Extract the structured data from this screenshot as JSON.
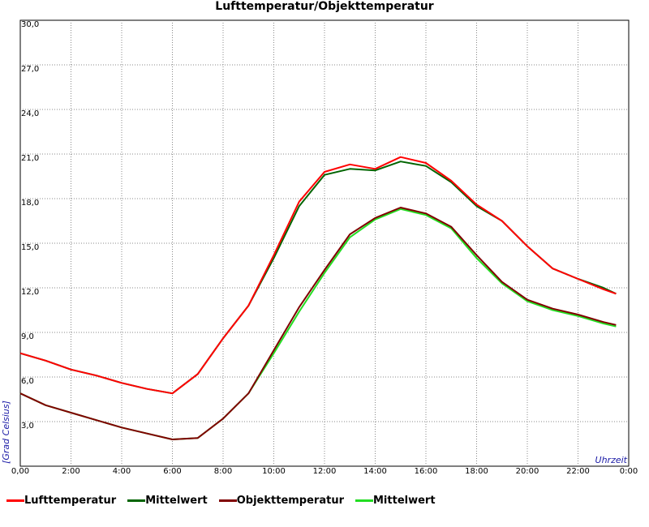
{
  "chart_data": {
    "type": "line",
    "title": "Lufttemperatur/Objekttemperatur",
    "xlabel": "Uhrzeit",
    "ylabel": "[Grad Celsius]",
    "xlim": [
      0,
      24
    ],
    "ylim": [
      0,
      30
    ],
    "x_ticks": [
      "0,00",
      "2:00",
      "4:00",
      "6:00",
      "8:00",
      "10:00",
      "12:00",
      "14:00",
      "16:00",
      "18:00",
      "20:00",
      "22:00",
      "0:00"
    ],
    "y_ticks": [
      "3,0",
      "6,0",
      "9,0",
      "12,0",
      "15,0",
      "18,0",
      "21,0",
      "24,0",
      "27,0",
      "30,0"
    ],
    "grid": true,
    "legend_position": "bottom",
    "x": [
      0,
      1,
      2,
      3,
      4,
      5,
      6,
      7,
      8,
      9,
      10,
      11,
      12,
      13,
      14,
      15,
      16,
      17,
      18,
      19,
      20,
      21,
      22,
      23,
      23.5
    ],
    "series": [
      {
        "name": "Lufttemperatur",
        "color": "#ff0000",
        "values": [
          7.6,
          7.1,
          6.5,
          6.1,
          5.6,
          5.2,
          4.9,
          6.2,
          8.6,
          10.8,
          14.2,
          17.8,
          19.8,
          20.3,
          20.0,
          20.8,
          20.4,
          19.2,
          17.6,
          16.5,
          14.8,
          13.3,
          12.6,
          11.9,
          11.6
        ]
      },
      {
        "name": "Mittelwert",
        "color": "#006400",
        "values": [
          7.6,
          7.1,
          6.5,
          6.1,
          5.6,
          5.2,
          4.9,
          6.2,
          8.6,
          10.8,
          14.0,
          17.5,
          19.6,
          20.0,
          19.9,
          20.5,
          20.2,
          19.1,
          17.5,
          16.5,
          14.8,
          13.3,
          12.6,
          12.0,
          11.6
        ]
      },
      {
        "name": "Objekttemperatur",
        "color": "#800000",
        "values": [
          4.9,
          4.1,
          3.6,
          3.1,
          2.6,
          2.2,
          1.8,
          1.9,
          3.2,
          4.9,
          7.8,
          10.7,
          13.2,
          15.6,
          16.7,
          17.4,
          17.0,
          16.1,
          14.2,
          12.4,
          11.2,
          10.6,
          10.2,
          9.7,
          9.5
        ]
      },
      {
        "name": "Mittelwert",
        "color": "#22dd22",
        "values": [
          4.9,
          4.1,
          3.6,
          3.1,
          2.6,
          2.2,
          1.8,
          1.9,
          3.2,
          4.9,
          7.6,
          10.4,
          13.0,
          15.4,
          16.6,
          17.3,
          16.9,
          16.0,
          14.0,
          12.3,
          11.1,
          10.5,
          10.1,
          9.6,
          9.4
        ]
      }
    ]
  }
}
